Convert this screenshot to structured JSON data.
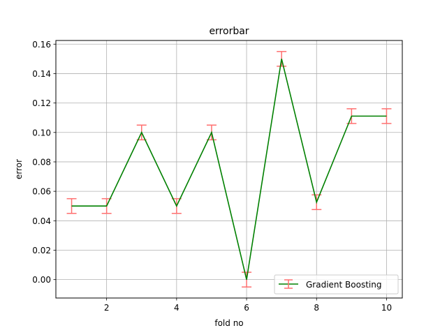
{
  "chart_data": {
    "type": "line",
    "title": "errorbar",
    "xlabel": "fold no",
    "ylabel": "error",
    "xlim": [
      0.55,
      10.45
    ],
    "ylim": [
      -0.0125,
      0.1625
    ],
    "xticks": [
      2,
      4,
      6,
      8,
      10
    ],
    "xtick_labels": [
      "2",
      "4",
      "6",
      "8",
      "10"
    ],
    "yticks": [
      0.0,
      0.02,
      0.04,
      0.06,
      0.08,
      0.1,
      0.12,
      0.14,
      0.16
    ],
    "ytick_labels": [
      "0.00",
      "0.02",
      "0.04",
      "0.06",
      "0.08",
      "0.10",
      "0.12",
      "0.14",
      "0.16"
    ],
    "grid": true,
    "legend_position": "lower-right",
    "series": [
      {
        "name": "Gradient Boosting",
        "line_color": "#008000",
        "errorbar_color": "#ff6f6f",
        "x": [
          1,
          2,
          3,
          4,
          5,
          6,
          7,
          8,
          9,
          10
        ],
        "y": [
          0.05,
          0.05,
          0.1,
          0.05,
          0.1,
          0.0,
          0.15,
          0.0526,
          0.1111,
          0.1111
        ],
        "yerr": [
          0.005,
          0.005,
          0.005,
          0.005,
          0.005,
          0.005,
          0.005,
          0.005,
          0.005,
          0.005
        ]
      }
    ]
  }
}
